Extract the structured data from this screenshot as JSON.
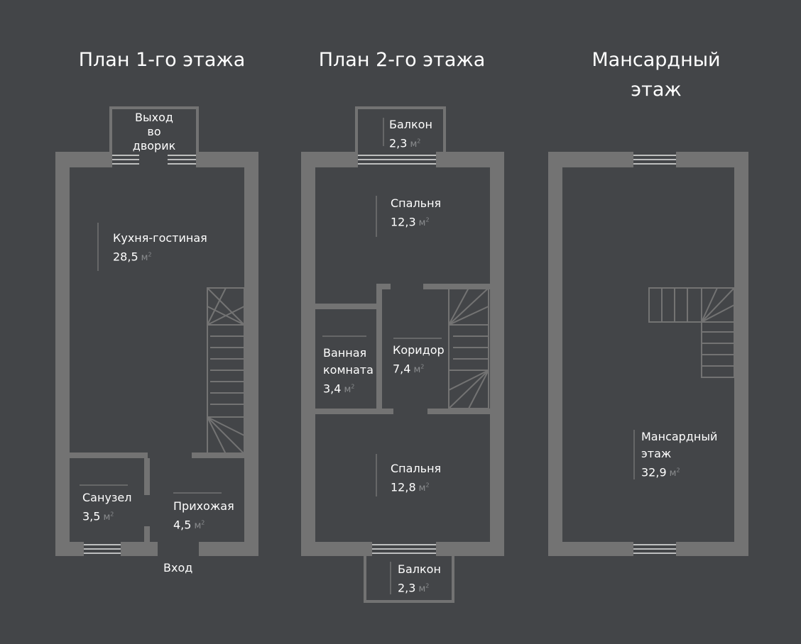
{
  "titles": {
    "floor1": "План 1-го этажа",
    "floor2": "План 2-го этажа",
    "attic_line1": "Мансардный",
    "attic_line2": "этаж"
  },
  "unit": "м",
  "unit_sup": "2",
  "floor1": {
    "exit_line1": "Выход",
    "exit_line2": "во",
    "exit_line3": "дворик",
    "kitchen": {
      "name": "Кухня-гостиная",
      "area": "28,5"
    },
    "bathroom": {
      "name": "Санузел",
      "area": "3,5"
    },
    "hallway": {
      "name": "Прихожая",
      "area": "4,5"
    },
    "entrance": "Вход"
  },
  "floor2": {
    "balcony_top": {
      "name": "Балкон",
      "area": "2,3"
    },
    "bedroom_top": {
      "name": "Спальня",
      "area": "12,3"
    },
    "bath_line1": "Ванная",
    "bath_line2": "комната",
    "bath_area": "3,4",
    "corridor": {
      "name": "Коридор",
      "area": "7,4"
    },
    "bedroom_bottom": {
      "name": "Спальня",
      "area": "12,8"
    },
    "balcony_bottom": {
      "name": "Балкон",
      "area": "2,3"
    }
  },
  "attic": {
    "line1": "Мансардный",
    "line2": "этаж",
    "area": "32,9"
  },
  "colors": {
    "background": "#434548",
    "wall": "#737373",
    "text": "#ffffff",
    "unit": "#8a8c8e"
  }
}
